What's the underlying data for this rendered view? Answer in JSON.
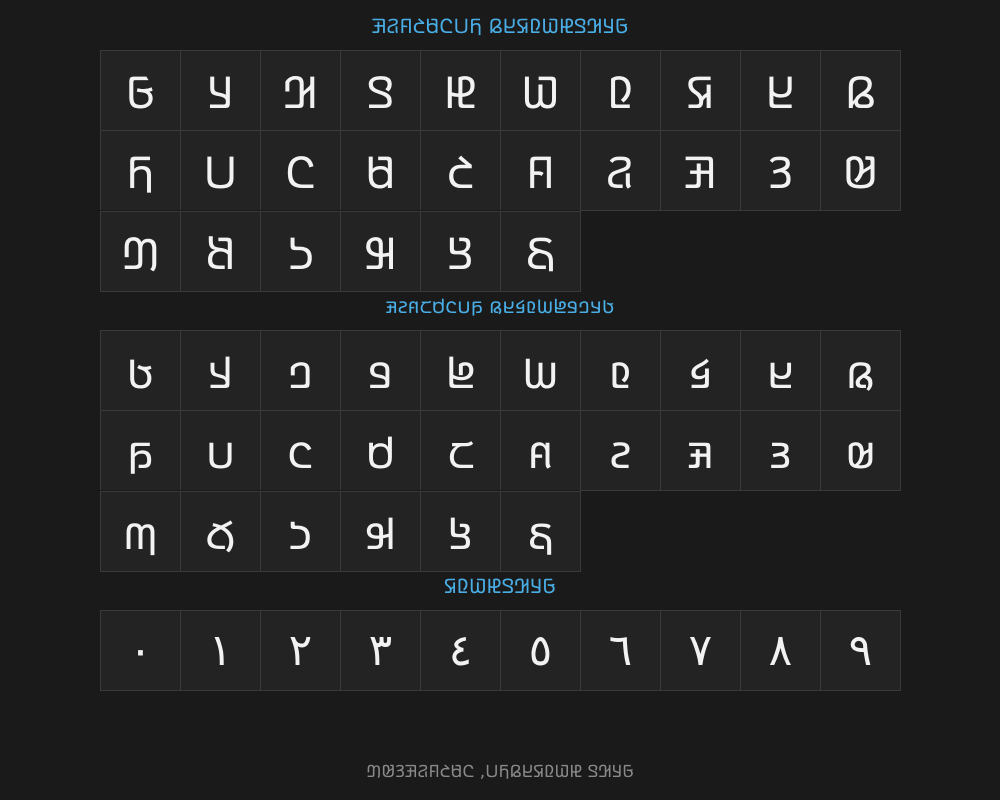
{
  "sections": [
    {
      "title": "𞤀𞤁𞤂𞤃𞤄𞤅𞤆𞤇𞤈𞤉 𞤊𞤋𞤌𞤍𞤎𞤏𞤐𞤑",
      "chars": [
        "𞤀",
        "𞤁",
        "𞤂",
        "𞤃",
        "𞤄",
        "𞤅",
        "𞤆",
        "𞤇",
        "𞤈",
        "𞤉",
        "𞤊",
        "𞤋",
        "𞤌",
        "𞤍",
        "𞤎",
        "𞤏",
        "𞤐",
        "𞤑",
        "𞤒",
        "𞤓",
        "𞤔",
        "𞤕",
        "𞤖",
        "𞤗",
        "𞤘",
        "𞤙"
      ]
    },
    {
      "title": "𞤢𞤣𞤤𞤥𞤦𞤧𞤨𞤩𞤪𞤫 𞤬𞤭𞤮𞤯𞤰𞤱𞤲𞤳",
      "chars": [
        "𞤢",
        "𞤣",
        "𞤤",
        "𞤥",
        "𞤦",
        "𞤧",
        "𞤨",
        "𞤩",
        "𞤪",
        "𞤫",
        "𞤬",
        "𞤭",
        "𞤮",
        "𞤯",
        "𞤰",
        "𞤱",
        "𞤲",
        "𞤳",
        "𞤴",
        "𞤵",
        "𞤶",
        "𞤷",
        "𞤸",
        "𞤹",
        "𞤺",
        "𞤻"
      ]
    },
    {
      "title": "𞤀𞤁𞤂𞤃𞤄𞤅𞤆𞤇",
      "chars": [
        "٠",
        "١",
        "٢",
        "٣",
        "٤",
        "٥",
        "٦",
        "٧",
        "٨",
        "٩"
      ]
    }
  ],
  "footer": "𞤀𞤁𞤂𞤃 𞤄𞤅𞤆𞤇𞤈𞤉𞤊𞤋, 𞤌𞤍𞤎𞤏𞤐𞤑𞤒𞤓𞤔",
  "colors": {
    "background": "#1a1a1a",
    "cell": "#232323",
    "border": "#3a3a3a",
    "heading": "#4aaee6",
    "glyph": "#f2f2f2",
    "footer": "#8a8a8a"
  }
}
